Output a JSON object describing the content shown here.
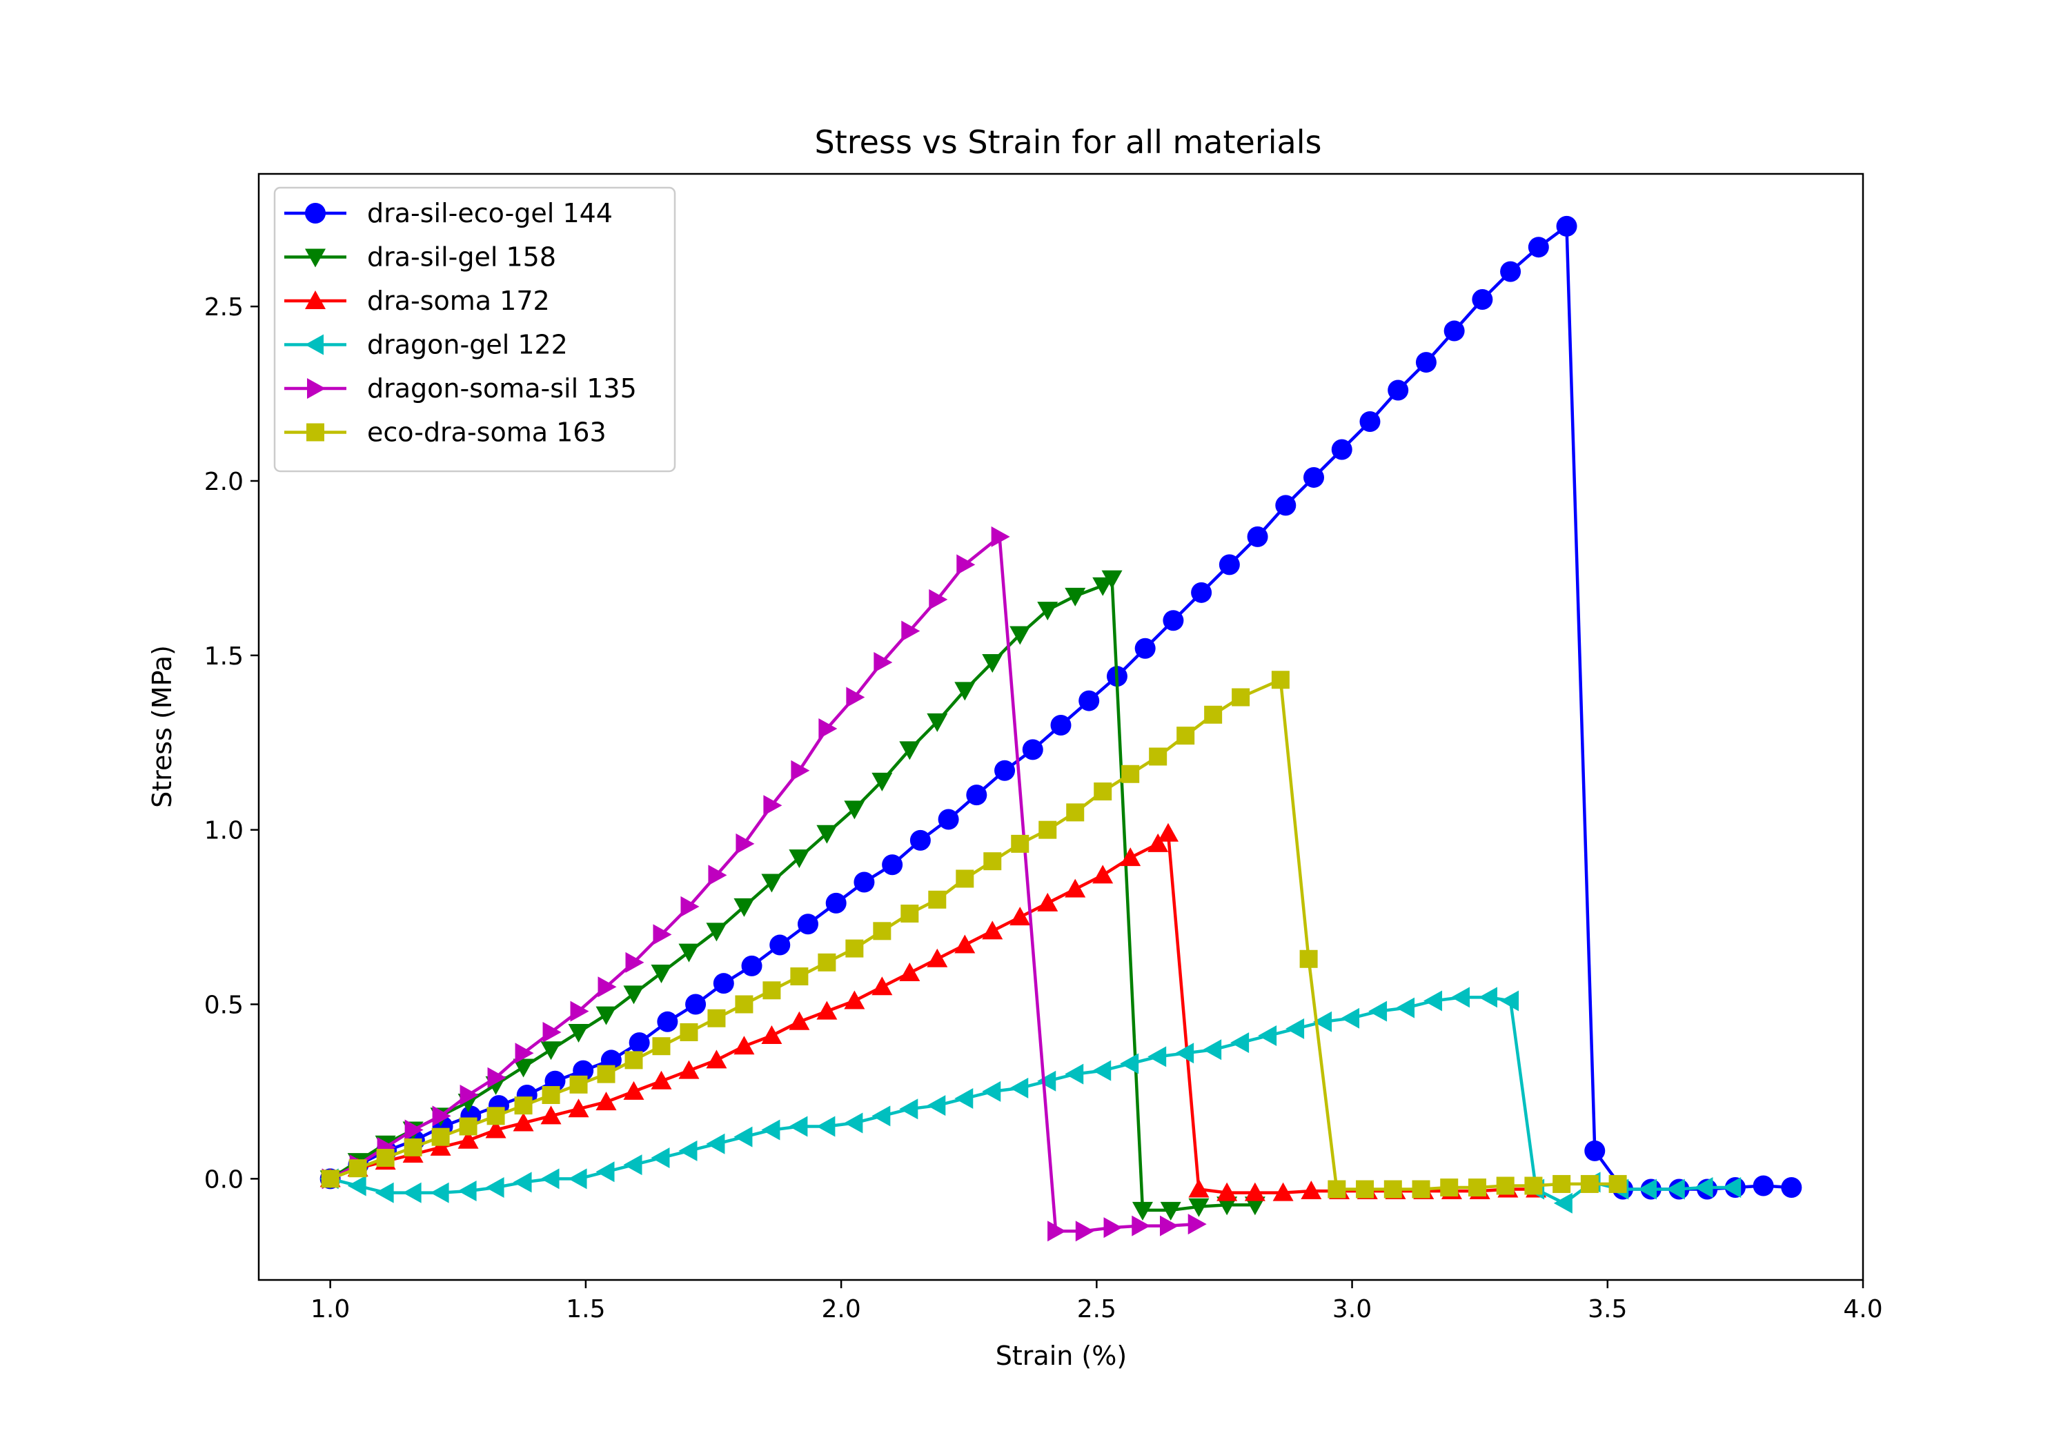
{
  "chart_data": {
    "type": "line",
    "title": "Stress vs Strain for all materials",
    "xlabel": "Strain (%)",
    "ylabel": "Stress (MPa)",
    "xlim": [
      0.86,
      4.0
    ],
    "ylim": [
      -0.29,
      2.88
    ],
    "xticks": [
      1.0,
      1.5,
      2.0,
      2.5,
      3.0,
      3.5,
      4.0
    ],
    "xtick_labels": [
      "1.0",
      "1.5",
      "2.0",
      "2.5",
      "3.0",
      "3.5",
      "4.0"
    ],
    "yticks": [
      0.0,
      0.5,
      1.0,
      1.5,
      2.0,
      2.5
    ],
    "ytick_labels": [
      "0.0",
      "0.5",
      "1.0",
      "1.5",
      "2.0",
      "2.5"
    ],
    "grid": false,
    "legend_position": "upper-left",
    "series": [
      {
        "name": "dra-sil-eco-gel 144",
        "color": "#0000ff",
        "marker": "circle",
        "x": [
          1.0,
          1.055,
          1.11,
          1.165,
          1.22,
          1.275,
          1.33,
          1.385,
          1.44,
          1.495,
          1.55,
          1.605,
          1.66,
          1.715,
          1.77,
          1.825,
          1.88,
          1.935,
          1.99,
          2.045,
          2.1,
          2.155,
          2.21,
          2.265,
          2.32,
          2.375,
          2.43,
          2.485,
          2.54,
          2.595,
          2.65,
          2.705,
          2.76,
          2.815,
          2.87,
          2.925,
          2.98,
          3.035,
          3.09,
          3.145,
          3.2,
          3.255,
          3.31,
          3.365,
          3.42,
          3.475,
          3.53,
          3.585,
          3.64,
          3.695,
          3.75,
          3.805,
          3.86
        ],
        "y": [
          0.0,
          0.04,
          0.08,
          0.11,
          0.15,
          0.18,
          0.21,
          0.24,
          0.28,
          0.31,
          0.34,
          0.39,
          0.45,
          0.5,
          0.56,
          0.61,
          0.67,
          0.73,
          0.79,
          0.85,
          0.9,
          0.97,
          1.03,
          1.1,
          1.17,
          1.23,
          1.3,
          1.37,
          1.44,
          1.52,
          1.6,
          1.68,
          1.76,
          1.84,
          1.93,
          2.01,
          2.09,
          2.17,
          2.26,
          2.34,
          2.43,
          2.52,
          2.6,
          2.67,
          2.73,
          0.08,
          -0.03,
          -0.03,
          -0.03,
          -0.03,
          -0.025,
          -0.02,
          -0.025
        ]
      },
      {
        "name": "dra-sil-gel 158",
        "color": "#008000",
        "marker": "triangle-down",
        "x": [
          1.0,
          1.054,
          1.108,
          1.162,
          1.216,
          1.27,
          1.324,
          1.378,
          1.432,
          1.486,
          1.54,
          1.594,
          1.648,
          1.702,
          1.756,
          1.81,
          1.864,
          1.918,
          1.972,
          2.026,
          2.08,
          2.134,
          2.188,
          2.242,
          2.296,
          2.35,
          2.404,
          2.458,
          2.512,
          2.53,
          2.59,
          2.645,
          2.7,
          2.755,
          2.81
        ],
        "y": [
          0.0,
          0.05,
          0.1,
          0.14,
          0.18,
          0.22,
          0.27,
          0.32,
          0.37,
          0.42,
          0.47,
          0.53,
          0.59,
          0.65,
          0.71,
          0.78,
          0.85,
          0.92,
          0.99,
          1.06,
          1.14,
          1.23,
          1.31,
          1.4,
          1.48,
          1.56,
          1.63,
          1.67,
          1.7,
          1.72,
          -0.09,
          -0.09,
          -0.08,
          -0.075,
          -0.075
        ]
      },
      {
        "name": "dra-soma 172",
        "color": "#ff0000",
        "marker": "triangle-up",
        "x": [
          1.0,
          1.054,
          1.108,
          1.162,
          1.216,
          1.27,
          1.324,
          1.378,
          1.432,
          1.486,
          1.54,
          1.594,
          1.648,
          1.702,
          1.756,
          1.81,
          1.864,
          1.918,
          1.972,
          2.026,
          2.08,
          2.134,
          2.188,
          2.242,
          2.296,
          2.35,
          2.404,
          2.458,
          2.512,
          2.566,
          2.62,
          2.64,
          2.7,
          2.755,
          2.81,
          2.865,
          2.92,
          2.975,
          3.03,
          3.085,
          3.14,
          3.195,
          3.25,
          3.305,
          3.36
        ],
        "y": [
          0.0,
          0.03,
          0.05,
          0.07,
          0.09,
          0.11,
          0.14,
          0.16,
          0.18,
          0.2,
          0.22,
          0.25,
          0.28,
          0.31,
          0.34,
          0.38,
          0.41,
          0.45,
          0.48,
          0.51,
          0.55,
          0.59,
          0.63,
          0.67,
          0.71,
          0.75,
          0.79,
          0.83,
          0.87,
          0.92,
          0.96,
          0.99,
          -0.03,
          -0.04,
          -0.04,
          -0.04,
          -0.035,
          -0.035,
          -0.035,
          -0.035,
          -0.035,
          -0.035,
          -0.035,
          -0.03,
          -0.03
        ]
      },
      {
        "name": "dragon-gel 122",
        "color": "#00bfbf",
        "marker": "triangle-left",
        "x": [
          1.0,
          1.054,
          1.108,
          1.162,
          1.216,
          1.27,
          1.324,
          1.378,
          1.432,
          1.486,
          1.54,
          1.594,
          1.648,
          1.702,
          1.756,
          1.81,
          1.864,
          1.918,
          1.972,
          2.026,
          2.08,
          2.134,
          2.188,
          2.242,
          2.296,
          2.35,
          2.404,
          2.458,
          2.512,
          2.566,
          2.62,
          2.674,
          2.728,
          2.782,
          2.836,
          2.89,
          2.944,
          2.998,
          3.052,
          3.106,
          3.16,
          3.214,
          3.268,
          3.31,
          3.36,
          3.415,
          3.47,
          3.525,
          3.58,
          3.635,
          3.69,
          3.745
        ],
        "y": [
          0.0,
          -0.02,
          -0.04,
          -0.04,
          -0.04,
          -0.035,
          -0.025,
          -0.01,
          0.0,
          0.0,
          0.02,
          0.04,
          0.06,
          0.08,
          0.1,
          0.12,
          0.14,
          0.15,
          0.15,
          0.16,
          0.18,
          0.2,
          0.21,
          0.23,
          0.25,
          0.26,
          0.28,
          0.3,
          0.31,
          0.33,
          0.35,
          0.36,
          0.37,
          0.39,
          0.41,
          0.43,
          0.45,
          0.46,
          0.48,
          0.49,
          0.51,
          0.52,
          0.52,
          0.51,
          -0.03,
          -0.07,
          -0.01,
          -0.03,
          -0.03,
          -0.03,
          -0.025,
          -0.025
        ]
      },
      {
        "name": "dragon-soma-sil 135",
        "color": "#bf00bf",
        "marker": "triangle-right",
        "x": [
          1.0,
          1.054,
          1.108,
          1.162,
          1.216,
          1.27,
          1.324,
          1.378,
          1.432,
          1.486,
          1.54,
          1.594,
          1.648,
          1.702,
          1.756,
          1.81,
          1.864,
          1.918,
          1.972,
          2.026,
          2.08,
          2.134,
          2.188,
          2.242,
          2.31,
          2.42,
          2.475,
          2.53,
          2.585,
          2.64,
          2.695
        ],
        "y": [
          0.0,
          0.04,
          0.09,
          0.14,
          0.18,
          0.24,
          0.29,
          0.36,
          0.42,
          0.48,
          0.55,
          0.62,
          0.7,
          0.78,
          0.87,
          0.96,
          1.07,
          1.17,
          1.29,
          1.38,
          1.48,
          1.57,
          1.66,
          1.76,
          1.84,
          -0.15,
          -0.15,
          -0.14,
          -0.135,
          -0.135,
          -0.13
        ]
      },
      {
        "name": "eco-dra-soma 163",
        "color": "#bfbf00",
        "marker": "square",
        "x": [
          1.0,
          1.054,
          1.108,
          1.162,
          1.216,
          1.27,
          1.324,
          1.378,
          1.432,
          1.486,
          1.54,
          1.594,
          1.648,
          1.702,
          1.756,
          1.81,
          1.864,
          1.918,
          1.972,
          2.026,
          2.08,
          2.134,
          2.188,
          2.242,
          2.296,
          2.35,
          2.404,
          2.458,
          2.512,
          2.566,
          2.62,
          2.674,
          2.728,
          2.782,
          2.86,
          2.915,
          2.97,
          3.025,
          3.08,
          3.135,
          3.19,
          3.245,
          3.3,
          3.355,
          3.41,
          3.465,
          3.52
        ],
        "y": [
          0.0,
          0.03,
          0.06,
          0.09,
          0.12,
          0.15,
          0.18,
          0.21,
          0.24,
          0.27,
          0.3,
          0.34,
          0.38,
          0.42,
          0.46,
          0.5,
          0.54,
          0.58,
          0.62,
          0.66,
          0.71,
          0.76,
          0.8,
          0.86,
          0.91,
          0.96,
          1.0,
          1.05,
          1.11,
          1.16,
          1.21,
          1.27,
          1.33,
          1.38,
          1.43,
          0.63,
          -0.03,
          -0.03,
          -0.03,
          -0.03,
          -0.025,
          -0.025,
          -0.02,
          -0.02,
          -0.015,
          -0.015,
          -0.015
        ]
      }
    ]
  }
}
